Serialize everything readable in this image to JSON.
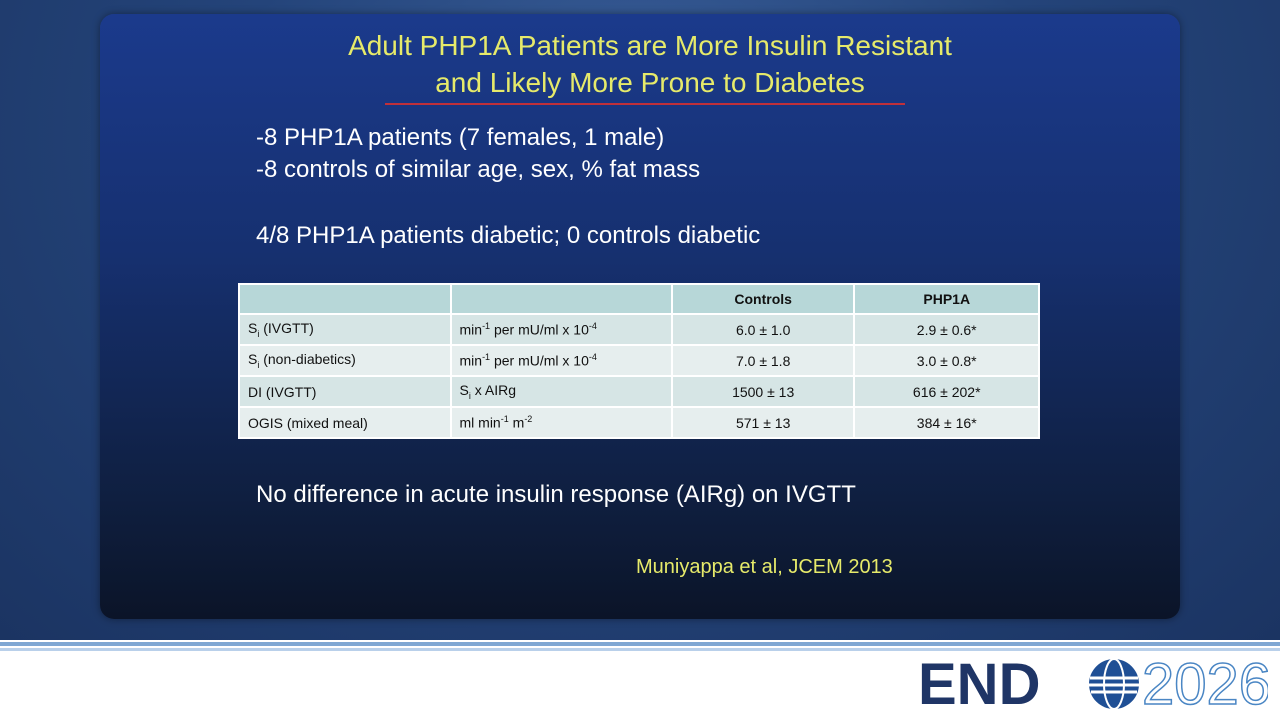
{
  "slide": {
    "title": [
      "Adult PHP1A Patients are More Insulin Resistant",
      "and Likely More Prone to Diabetes"
    ],
    "bullets": [
      "-8 PHP1A patients (7 females, 1 male)",
      "-8 controls of similar age, sex, % fat mass"
    ],
    "finding": "4/8 PHP1A patients diabetic; 0 controls diabetic",
    "table": {
      "header": [
        null,
        null,
        "Controls",
        "PHP1A"
      ],
      "rows": [
        [
          [
            "S",
            {
              "text": "i",
              "script": "sub"
            },
            " (IVGTT)"
          ],
          [
            "min",
            {
              "text": "-1",
              "script": "sup"
            },
            " per mU/ml x 10",
            {
              "text": "-4",
              "script": "sup"
            }
          ],
          "6.0 ± 1.0",
          "2.9 ± 0.6*"
        ],
        [
          [
            "S",
            {
              "text": "i",
              "script": "sub"
            },
            " (non-diabetics)"
          ],
          [
            "min",
            {
              "text": "-1",
              "script": "sup"
            },
            " per mU/ml x 10",
            {
              "text": "-4",
              "script": "sup"
            }
          ],
          "7.0 ± 1.8",
          "3.0 ± 0.8*"
        ],
        [
          "DI (IVGTT)",
          [
            "S",
            {
              "text": "i",
              "script": "sub"
            },
            " x AIRg"
          ],
          "1500 ± 13",
          "616 ± 202*"
        ],
        [
          "OGIS (mixed meal)",
          [
            "ml min",
            {
              "text": "-1",
              "script": "sup"
            },
            " m",
            {
              "text": "-2",
              "script": "sup"
            }
          ],
          "571 ± 13",
          "384 ± 16*"
        ]
      ]
    },
    "conclusion": "No difference in acute insulin response (AIRg) on IVGTT",
    "citation": "Muniyappa et al, JCEM 2013"
  },
  "logo": {
    "left": "END",
    "right": "2026"
  }
}
